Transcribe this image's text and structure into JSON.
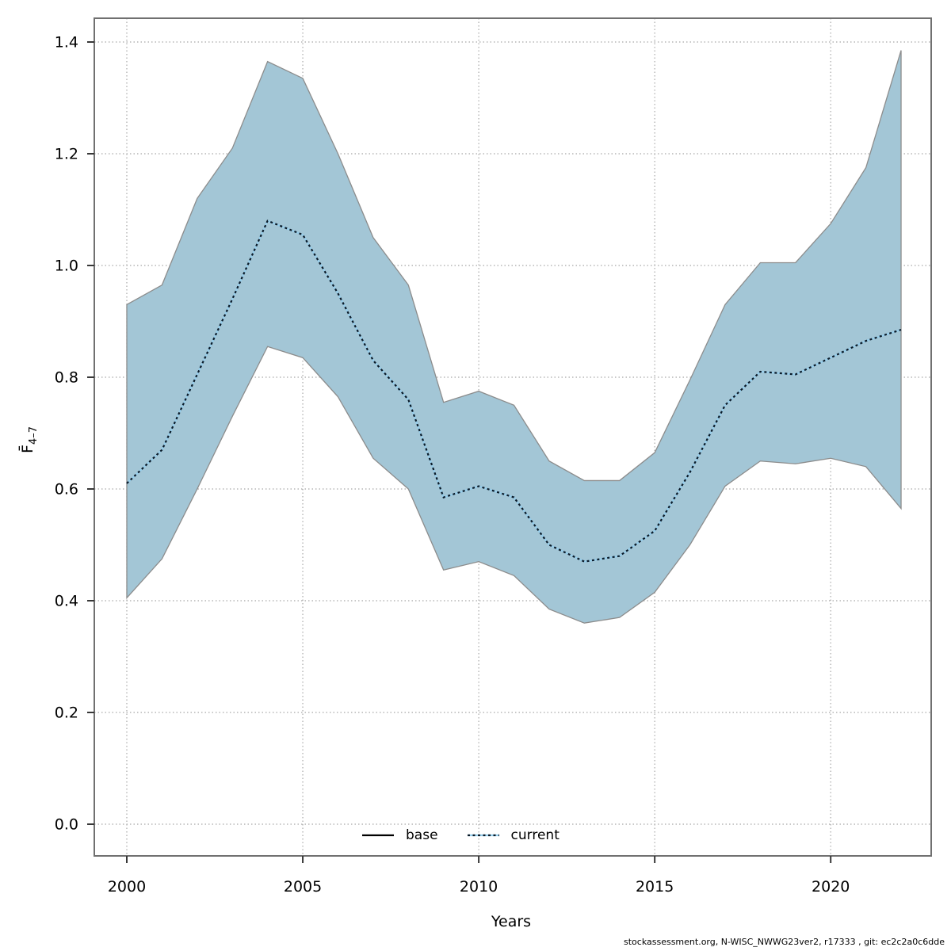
{
  "chart": {
    "xlabel": "Years",
    "ylabel": {
      "main": "F̄",
      "sub": "4–7"
    },
    "footer": "stockassessment.org, N-WISC_NWWG23ver2, r17333 , git: ec2c2a0c6dde",
    "legend": {
      "items": [
        {
          "label": "base",
          "style": "solid",
          "stroke": "#000000"
        },
        {
          "label": "current",
          "style": "dotted",
          "stroke": "#96cdeb",
          "dash_stroke": "#0a1a28"
        }
      ]
    },
    "colors": {
      "band_fill": "#a3c6d6",
      "band_edge": "#8c8c8c",
      "grid": "#a8a8a8",
      "border": "#707070",
      "tick": "#383838",
      "text": "#000000",
      "current_under": "#96cdeb",
      "current_dash": "#0a1a28"
    },
    "axes": {
      "xtick_labels": [
        "2000",
        "2005",
        "2010",
        "2015",
        "2020"
      ],
      "xtick_values": [
        2000,
        2005,
        2010,
        2015,
        2020
      ],
      "ytick_labels": [
        "0.0",
        "0.2",
        "0.4",
        "0.6",
        "0.8",
        "1.0",
        "1.2",
        "1.4"
      ],
      "ytick_values": [
        0,
        0.2,
        0.4,
        0.6,
        0.8,
        1.0,
        1.2,
        1.4
      ]
    }
  },
  "chart_data": {
    "type": "line",
    "title": "",
    "xlabel": "Years",
    "ylabel": "Fbar(4-7)",
    "grid": "dotted",
    "legend_position": "bottom-center",
    "legend_entries": [
      "base",
      "current"
    ],
    "xlim": [
      1999.1,
      2022.9
    ],
    "ylim": [
      0.0,
      1.4
    ],
    "x": [
      2000,
      2001,
      2002,
      2003,
      2004,
      2005,
      2006,
      2007,
      2008,
      2009,
      2010,
      2011,
      2012,
      2013,
      2014,
      2015,
      2016,
      2017,
      2018,
      2019,
      2020,
      2021,
      2022
    ],
    "series": [
      {
        "name": "current",
        "style": "dotted",
        "values": [
          0.61,
          0.67,
          0.805,
          0.94,
          1.08,
          1.055,
          0.95,
          0.83,
          0.76,
          0.585,
          0.605,
          0.585,
          0.5,
          0.47,
          0.48,
          0.525,
          0.63,
          0.75,
          0.81,
          0.805,
          0.835,
          0.865,
          0.885
        ]
      }
    ],
    "band": {
      "name": "confidence-band",
      "low": [
        0.405,
        0.475,
        0.6,
        0.73,
        0.855,
        0.835,
        0.765,
        0.655,
        0.6,
        0.455,
        0.47,
        0.445,
        0.385,
        0.36,
        0.37,
        0.415,
        0.5,
        0.605,
        0.65,
        0.645,
        0.655,
        0.64,
        0.565
      ],
      "high": [
        0.93,
        0.965,
        1.12,
        1.21,
        1.365,
        1.335,
        1.2,
        1.05,
        0.965,
        0.755,
        0.775,
        0.75,
        0.65,
        0.615,
        0.615,
        0.665,
        0.795,
        0.93,
        1.005,
        1.005,
        1.075,
        1.175,
        1.385
      ]
    }
  }
}
